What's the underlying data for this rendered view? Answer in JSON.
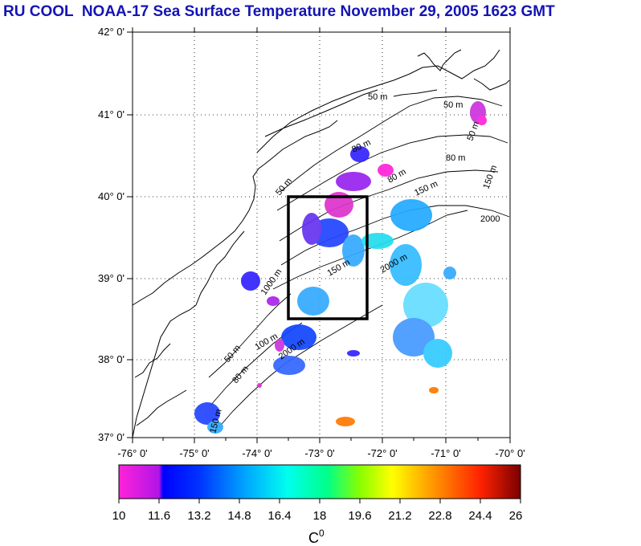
{
  "title": "RU COOL  NOAA-17 Sea Surface Temperature November 29, 2005 1623 GMT",
  "lat_ticks": [
    "42° 0'",
    "41° 0'",
    "40° 0'",
    "39° 0'",
    "38° 0'",
    "37° 0'"
  ],
  "lon_ticks": [
    "-76° 0'",
    "-75° 0'",
    "-74° 0'",
    "-73° 0'",
    "-72° 0'",
    "-71° 0'",
    "-70° 0'"
  ],
  "contour_labels": [
    "50 m",
    "50 m",
    "50 m",
    "80 m",
    "80 m",
    "150 m",
    "150 m",
    "2000",
    "50 m",
    "150 m",
    "80 m",
    "2000 m",
    "1000 m",
    "50 m",
    "80 m",
    "2000 m",
    "100 m",
    "150 m"
  ],
  "colorbar": {
    "ticks": [
      "10",
      "11.6",
      "13.2",
      "14.8",
      "16.4",
      "18",
      "19.6",
      "21.2",
      "22.8",
      "24.4",
      "26"
    ],
    "unit": "C",
    "unit_superscript": "0",
    "colors": [
      "#ff22d8",
      "#0000ff",
      "#0066ff",
      "#00ccff",
      "#00ffcc",
      "#66ff33",
      "#ffff00",
      "#ff9900",
      "#ff2200",
      "#8b0000"
    ]
  },
  "box_lon": [
    -73.4,
    -72.2
  ],
  "box_lat": [
    38.5,
    40.0
  ]
}
